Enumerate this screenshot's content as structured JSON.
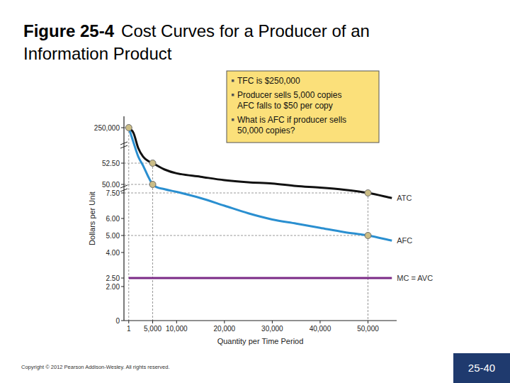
{
  "chart_data": {
    "type": "line",
    "figure_label": "Figure 25-4",
    "title": [
      "Cost Curves for a Producer of an",
      "Information Product"
    ],
    "x_label": "Quantity per Time Period",
    "y_label": "Dollars per Unit",
    "annotation": [
      [
        "TFC is $250,000"
      ],
      [
        "Producer sells 5,000 copies",
        "AFC falls to $50 per copy"
      ],
      [
        "What is AFC if producer sells",
        "50,000 copies?"
      ]
    ],
    "x": [
      1,
      1000,
      2000,
      3000,
      4000,
      5000,
      7500,
      10000,
      15000,
      20000,
      25000,
      30000,
      35000,
      40000,
      45000,
      50000,
      55000
    ],
    "series": [
      {
        "name": "ATC",
        "color": "#111111",
        "marker": "circle",
        "values": [
          250002.5,
          212000,
          105000,
          45700,
          16000,
          52.5,
          51.75,
          51.3,
          50.9,
          50.5,
          50.25,
          50.1,
          42,
          34,
          23.4,
          7.5,
          7.2
        ]
      },
      {
        "name": "AFC",
        "color": "#2a8fd0",
        "marker": "circle",
        "values": [
          250000,
          145000,
          45000,
          52.2,
          51.0,
          50,
          26.1,
          12.8,
          7.2,
          6.75,
          6.3,
          5.94,
          5.7,
          5.45,
          5.2,
          5,
          4.7
        ]
      },
      {
        "name": "MC = AVC",
        "color": "#7b2a86",
        "values": [
          2.5,
          2.5,
          2.5,
          2.5,
          2.5,
          2.5,
          2.5,
          2.5,
          2.5,
          2.5,
          2.5,
          2.5,
          2.5,
          2.5,
          2.5,
          2.5,
          2.5
        ]
      }
    ],
    "xlim": [
      -1000,
      56000
    ],
    "xticks": [
      1,
      {
        "value": 5000,
        "label": "5,000"
      },
      {
        "value": 10000,
        "label": "10,000"
      },
      {
        "value": 20000,
        "label": "20,000"
      },
      {
        "value": 30000,
        "label": "30,000"
      },
      {
        "value": 40000,
        "label": "40,000"
      },
      {
        "value": 50000,
        "label": "50,000"
      }
    ],
    "ylim": [
      0,
      260000
    ],
    "yticks": [
      0,
      {
        "value": 2,
        "label": "2.00"
      },
      {
        "value": 2.5,
        "label": "2.50"
      },
      {
        "value": 4,
        "label": "4.00"
      },
      {
        "value": 5,
        "label": "5.00"
      },
      {
        "value": 6,
        "label": "6.00"
      },
      {
        "value": 7.5,
        "label": "7.50"
      },
      {
        "value": 50,
        "label": "50.00"
      },
      {
        "value": 52.5,
        "label": "52.50"
      },
      {
        "value": 250000,
        "label": "250,000"
      }
    ],
    "grid": false
  },
  "slide": {
    "copyright": "Copyright © 2012 Pearson Addison-Wesley. All rights reserved.",
    "page_number": "25-40"
  }
}
